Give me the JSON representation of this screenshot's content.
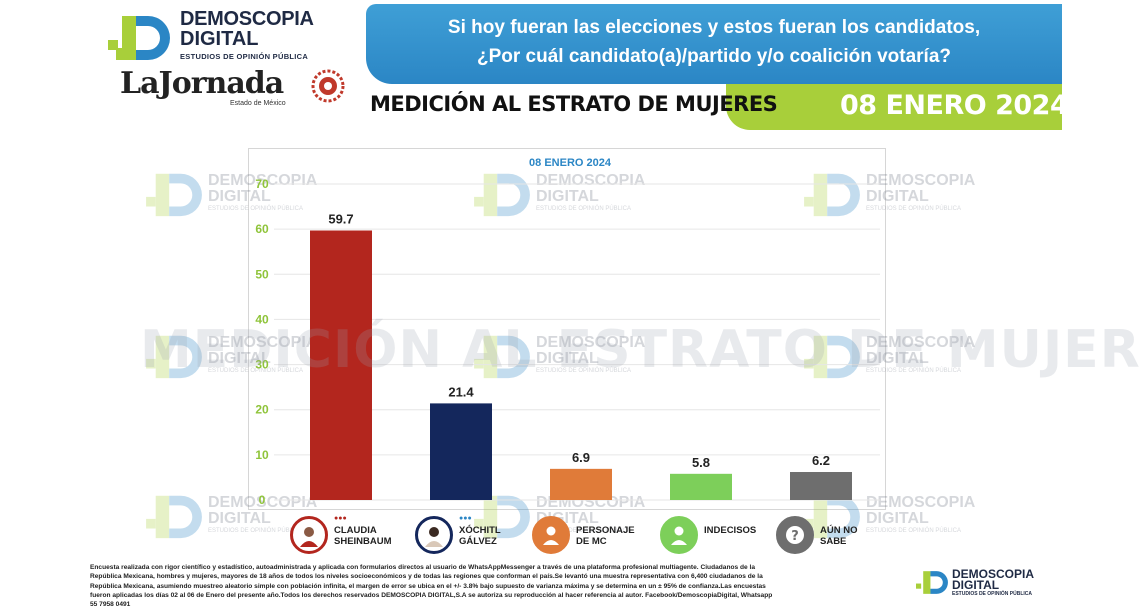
{
  "brand": {
    "line1": "DEMOSCOPIA",
    "line2": "DIGITAL",
    "tagline": "ESTUDIOS DE OPINIÓN PÚBLICA"
  },
  "partner": {
    "name": "LaJornada",
    "sub": "Estado de México"
  },
  "question": {
    "line1": "Si hoy fueran las elecciones y estos fueran los candidatos,",
    "line2": "¿Por cuál candidato(a)/partido y/o coalición votaría?"
  },
  "measure": "MEDICIÓN AL ESTRATO DE MUJERES",
  "date": "08 ENERO 2024",
  "watermark_big": "MEDICIÓN AL ESTRATO DE MUJERES",
  "colors": {
    "blue": "#2b86c5",
    "green": "#a8cf3a",
    "axis_label": "#8fc43a"
  },
  "chart_data": {
    "type": "bar",
    "title": "08 ENERO 2024",
    "categories": [
      "CLAUDIA SHEINBAUM",
      "XÓCHITL GÁLVEZ",
      "PERSONAJE DE MC",
      "INDECISOS",
      "AÚN NO SABE"
    ],
    "values": [
      59.7,
      21.4,
      6.9,
      5.8,
      6.2
    ],
    "labels": [
      "59.7",
      "21.4",
      "6.9",
      "5.8",
      "6.2"
    ],
    "colors": [
      "#b3261e",
      "#14275c",
      "#e07b39",
      "#7dcf5a",
      "#6e6e6e"
    ],
    "yticks": [
      0,
      10,
      20,
      30,
      40,
      50,
      60,
      70
    ],
    "ylim": [
      0,
      70
    ],
    "xlabel": "",
    "ylabel": "",
    "grid": true
  },
  "candidates": [
    {
      "line1": "CLAUDIA",
      "line2": "SHEINBAUM",
      "color": "#b3261e",
      "icon": "photo-icon"
    },
    {
      "line1": "XÓCHITL",
      "line2": "GÁLVEZ",
      "color": "#14275c",
      "icon": "photo-icon"
    },
    {
      "line1": "PERSONAJE",
      "line2": "DE MC",
      "color": "#e07b39",
      "icon": "person-icon"
    },
    {
      "line1": "INDECISOS",
      "line2": "",
      "color": "#7dcf5a",
      "icon": "person-icon"
    },
    {
      "line1": "AÚN NO",
      "line2": "SABE",
      "color": "#6e6e6e",
      "icon": "question-icon"
    }
  ],
  "footnote": {
    "line1": "Encuesta realizada con rigor científico y estadístico, autoadministrada y aplicada con formularios directos al usuario de WhatsAppMessenger a través de una plataforma profesional multiagente. Ciudadanos de la",
    "line2": "República Mexicana, hombres y mujeres, mayores de 18 años de todos los niveles socioeconómicos y de todas las regiones que conforman el país.Se levantó una muestra representativa con 6,400 ciudadanos de la",
    "line3": "República Mexicana, asumiendo muestreo aleatorio simple con población infinita, el margen de error se ubica en el +/- 3.8% bajo supuesto de varianza máxima y se determina en un ± 95% de confianza.Las encuestas",
    "line4": "fueron aplicadas los días 02 al 06 de Enero del presente año.Todos los derechos reservados DEMOSCOPIA DIGITAL,S.A se autoriza su reproducción al hacer referencia al autor. Facebook/DemoscopiaDigital, Whatsapp",
    "line5": "55 7958 0491"
  }
}
